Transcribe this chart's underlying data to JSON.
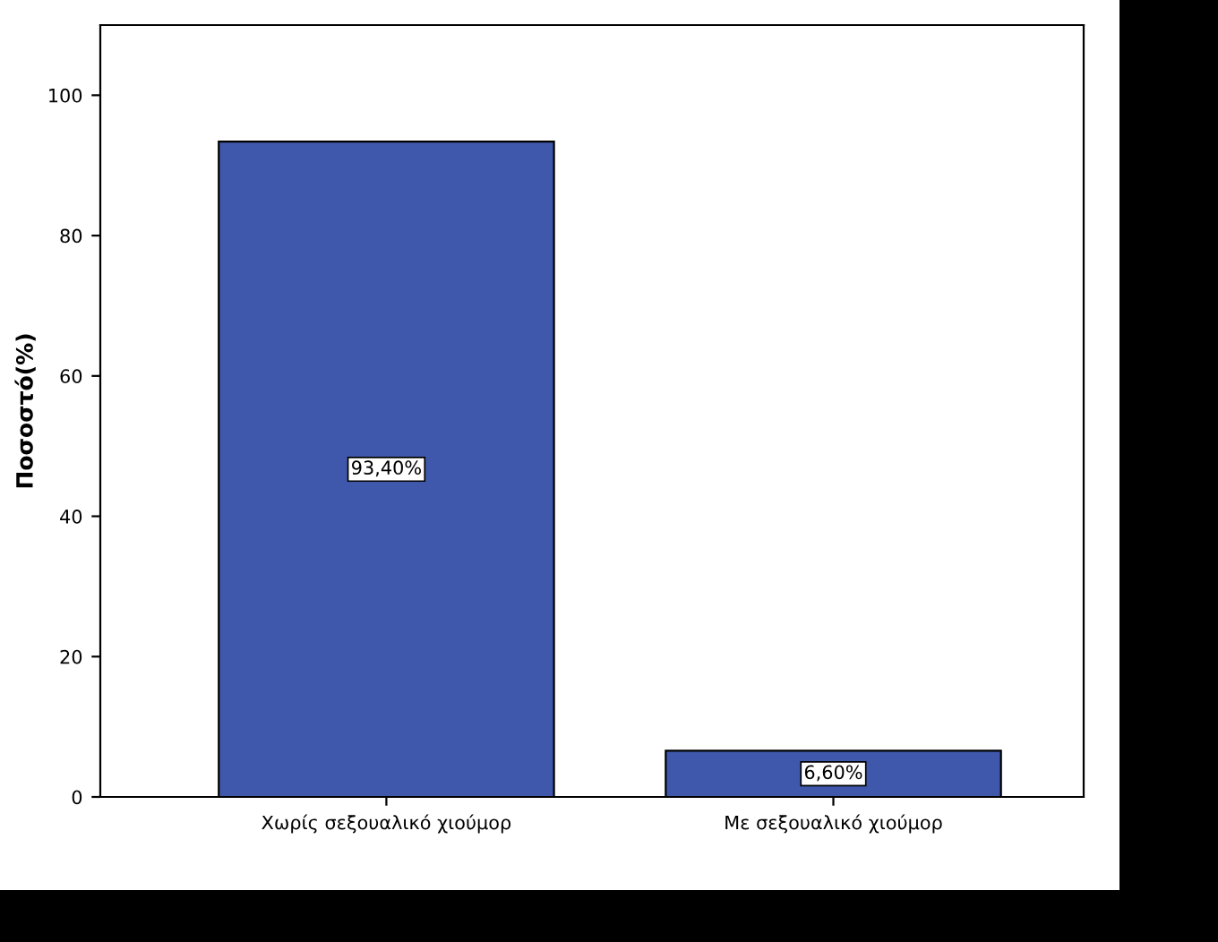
{
  "chart_data": {
    "type": "bar",
    "ylabel": "Ποσοστό(%)",
    "categories": [
      "Χωρίς σεξουαλικό χιούμορ",
      "Με σεξουαλικό χιούμορ"
    ],
    "values": [
      93.4,
      6.6
    ],
    "value_labels": [
      "93,40%",
      "6,60%"
    ],
    "color": "#3f58ab",
    "ylim": [
      0,
      110
    ],
    "yticks": [
      0,
      20,
      40,
      60,
      80,
      100
    ],
    "grid": false,
    "legend": false
  }
}
